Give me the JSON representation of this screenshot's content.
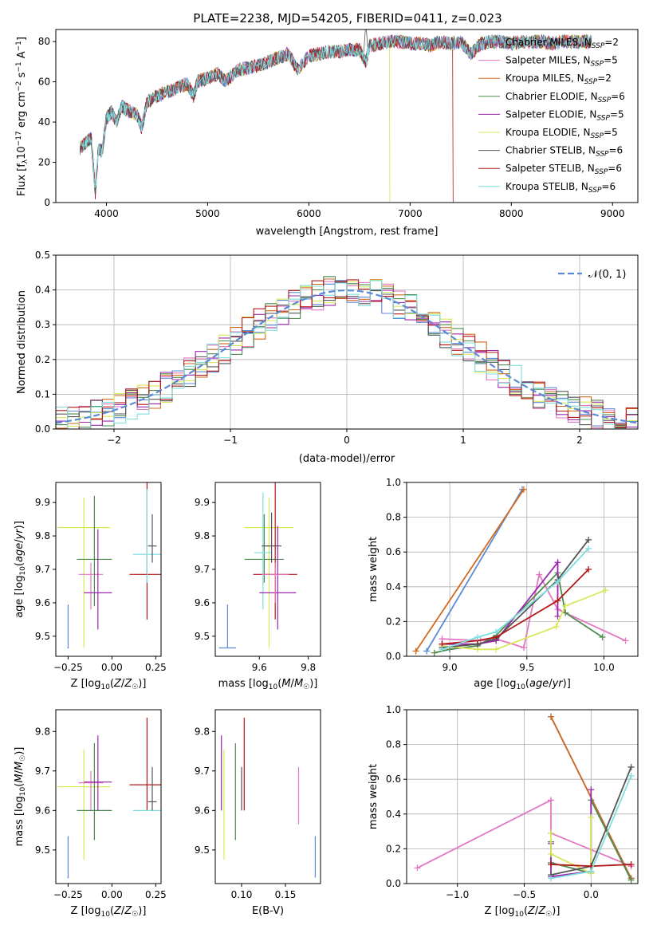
{
  "figure": {
    "title": "PLATE=2238, MJD=54205, FIBERID=0411, z=0.023"
  },
  "colors": {
    "Chabrier MILES": "#5b8bd6",
    "Salpeter MILES": "#e377c2",
    "Kroupa MILES": "#d2691e",
    "Chabrier ELODIE": "#4f8a4f",
    "Salpeter ELODIE": "#9b27ae",
    "Kroupa ELODIE": "#d8e85a",
    "Chabrier STELIB": "#555555",
    "Salpeter STELIB": "#b21818",
    "Kroupa STELIB": "#7fdede",
    "gaussian": "#5b8bd6"
  },
  "chart_data": [
    {
      "id": "spectrum",
      "type": "line",
      "xlabel": "wavelength [Angstrom, rest frame]",
      "ylabel": "Flux [f_λ 10^-17 erg cm^-2 s^-1 A^-1]",
      "xlim": [
        3500,
        9250
      ],
      "ylim": [
        0,
        86
      ],
      "xticks": [
        "4000",
        "5000",
        "6000",
        "7000",
        "8000",
        "9000"
      ],
      "yticks": [
        "0",
        "20",
        "40",
        "60",
        "80"
      ],
      "grid": false,
      "legend": "top-right",
      "legend_entries": [
        {
          "label": "Chabrier MILES, N",
          "n": "2",
          "key": "Chabrier MILES"
        },
        {
          "label": "Salpeter MILES, N",
          "n": "5",
          "key": "Salpeter MILES"
        },
        {
          "label": "Kroupa MILES, N",
          "n": "2",
          "key": "Kroupa MILES"
        },
        {
          "label": "Chabrier ELODIE, N",
          "n": "6",
          "key": "Chabrier ELODIE"
        },
        {
          "label": "Salpeter ELODIE, N",
          "n": "5",
          "key": "Salpeter ELODIE"
        },
        {
          "label": "Kroupa ELODIE, N",
          "n": "5",
          "key": "Kroupa ELODIE"
        },
        {
          "label": "Chabrier STELIB, N",
          "n": "6",
          "key": "Chabrier STELIB"
        },
        {
          "label": "Salpeter STELIB, N",
          "n": "6",
          "key": "Salpeter STELIB"
        },
        {
          "label": "Kroupa STELIB, N",
          "n": "6",
          "key": "Kroupa STELIB"
        }
      ],
      "x": [
        3740,
        3800,
        3850,
        3890,
        3920,
        3960,
        4000,
        4050,
        4100,
        4150,
        4200,
        4300,
        4350,
        4400,
        4500,
        4600,
        4700,
        4800,
        4861,
        4900,
        5000,
        5100,
        5175,
        5300,
        5400,
        5500,
        5600,
        5700,
        5800,
        5890,
        6000,
        6100,
        6200,
        6300,
        6400,
        6500,
        6563,
        6600,
        6700,
        6800,
        6900,
        7000,
        7100,
        7200,
        7300,
        7400,
        7500,
        7600,
        7700,
        7800,
        7900,
        8000,
        8100,
        8200,
        8300,
        8400,
        8500,
        8600,
        8700,
        8800
      ],
      "y": [
        27,
        30,
        32,
        5,
        26,
        26,
        42,
        45,
        40,
        48,
        46,
        44,
        37,
        50,
        53,
        55,
        57,
        59,
        53,
        60,
        62,
        64,
        60,
        66,
        67,
        68,
        70,
        72,
        74,
        66,
        73,
        74,
        75,
        75,
        76,
        76,
        70,
        78,
        79,
        80,
        80,
        79,
        79,
        78,
        80,
        79,
        80,
        74,
        79,
        80,
        80,
        79,
        80,
        80,
        80,
        79,
        80,
        80,
        80,
        80
      ],
      "spikes": [
        {
          "x": 6563,
          "y": 86
        }
      ]
    },
    {
      "id": "residuals",
      "type": "step",
      "xlabel": "(data-model)/error",
      "ylabel": "Normed distribution",
      "xlim": [
        -2.5,
        2.5
      ],
      "ylim": [
        0,
        0.5
      ],
      "xticks": [
        "−2",
        "−1",
        "0",
        "1",
        "2"
      ],
      "yticks": [
        "0.0",
        "0.1",
        "0.2",
        "0.3",
        "0.4",
        "0.5"
      ],
      "grid": true,
      "legend": "top-right",
      "gaussian_label": "𝒩(0, 1)",
      "bin_width": 0.1
    },
    {
      "id": "age_vs_Z",
      "type": "errorbar",
      "xlabel": "Z [log10(Z/Z☉)]",
      "ylabel": "age  [log10(age/yr)]",
      "xlim": [
        -0.32,
        0.28
      ],
      "ylim": [
        9.44,
        9.96
      ],
      "xticks": [
        {
          "v": -0.25,
          "t": "−0.25"
        },
        {
          "v": 0,
          "t": "0.00"
        },
        {
          "v": 0.25,
          "t": "0.25"
        }
      ],
      "yticks": [
        {
          "v": 9.5,
          "t": "9.5"
        },
        {
          "v": 9.6,
          "t": "9.6"
        },
        {
          "v": 9.7,
          "t": "9.7"
        },
        {
          "v": 9.8,
          "t": "9.8"
        },
        {
          "v": 9.9,
          "t": "9.9"
        }
      ],
      "points": [
        {
          "key": "Chabrier MILES",
          "x": -0.25,
          "xerr": 0.004,
          "y": 9.465,
          "ylo": 9.465,
          "yhi": 9.595
        },
        {
          "key": "Kroupa ELODIE",
          "x": -0.16,
          "xerr": 0.15,
          "y": 9.825,
          "ylo": 9.465,
          "yhi": 9.915
        },
        {
          "key": "Salpeter MILES",
          "x": -0.12,
          "xerr": 0.07,
          "y": 9.685,
          "ylo": 9.58,
          "yhi": 9.72
        },
        {
          "key": "Chabrier ELODIE",
          "x": -0.1,
          "xerr": 0.1,
          "y": 9.73,
          "ylo": 9.59,
          "yhi": 9.92
        },
        {
          "key": "Salpeter ELODIE",
          "x": -0.08,
          "xerr": 0.08,
          "y": 9.63,
          "ylo": 9.52,
          "yhi": 9.82
        },
        {
          "key": "Salpeter STELIB",
          "x": 0.2,
          "xerr": 0.1,
          "y": 9.685,
          "ylo": 9.55,
          "yhi": 9.97
        },
        {
          "key": "Kroupa STELIB",
          "x": 0.2,
          "xerr": 0.08,
          "y": 9.745,
          "ylo": 9.66,
          "yhi": 9.94
        },
        {
          "key": "Chabrier STELIB",
          "x": 0.23,
          "xerr": 0.025,
          "y": 9.77,
          "ylo": 9.72,
          "yhi": 9.865
        }
      ]
    },
    {
      "id": "age_vs_mass",
      "type": "errorbar",
      "xlabel": "mass [log10(M/M☉)]",
      "ylabel": "",
      "xlim": [
        9.42,
        9.85
      ],
      "ylim": [
        9.44,
        9.96
      ],
      "xticks": [
        {
          "v": 9.6,
          "t": "9.6"
        },
        {
          "v": 9.8,
          "t": "9.8"
        }
      ],
      "yticks": [
        {
          "v": 9.5,
          "t": "9.5"
        },
        {
          "v": 9.6,
          "t": "9.6"
        },
        {
          "v": 9.7,
          "t": "9.7"
        },
        {
          "v": 9.8,
          "t": "9.8"
        },
        {
          "v": 9.9,
          "t": "9.9"
        }
      ],
      "points": [
        {
          "key": "Chabrier MILES",
          "x": 9.47,
          "xerr": 0.035,
          "y": 9.465,
          "ylo": 9.465,
          "yhi": 9.595
        },
        {
          "key": "Kroupa ELODIE",
          "x": 9.64,
          "xerr": 0.1,
          "y": 9.825,
          "ylo": 9.465,
          "yhi": 9.915
        },
        {
          "key": "Chabrier ELODIE",
          "x": 9.62,
          "xerr": 0.08,
          "y": 9.73,
          "ylo": 9.66,
          "yhi": 9.865
        },
        {
          "key": "Kroupa STELIB",
          "x": 9.615,
          "xerr": 0.035,
          "y": 9.75,
          "ylo": 9.58,
          "yhi": 9.93
        },
        {
          "key": "Chabrier STELIB",
          "x": 9.65,
          "xerr": 0.04,
          "y": 9.77,
          "ylo": 9.72,
          "yhi": 9.87
        },
        {
          "key": "Salpeter ELODIE",
          "x": 9.675,
          "xerr": 0.075,
          "y": 9.63,
          "ylo": 9.52,
          "yhi": 9.83
        },
        {
          "key": "Salpeter STELIB",
          "x": 9.665,
          "xerr": 0.09,
          "y": 9.685,
          "ylo": 9.55,
          "yhi": 9.97
        },
        {
          "key": "Salpeter MILES",
          "x": 9.665,
          "xerr": 0.055,
          "y": 9.685,
          "ylo": 9.6,
          "yhi": 9.72
        }
      ]
    },
    {
      "id": "weight_vs_age",
      "type": "line",
      "xlabel": "age  [log10(age/yr)]",
      "ylabel": "mass weight",
      "xlim": [
        8.72,
        10.22
      ],
      "ylim": [
        0,
        1
      ],
      "xticks": [
        {
          "v": 9.0,
          "t": "9.0"
        },
        {
          "v": 9.5,
          "t": "9.5"
        },
        {
          "v": 10.0,
          "t": "10.0"
        }
      ],
      "yticks": [
        {
          "v": 0,
          "t": "0.0"
        },
        {
          "v": 0.2,
          "t": "0.2"
        },
        {
          "v": 0.4,
          "t": "0.4"
        },
        {
          "v": 0.6,
          "t": "0.6"
        },
        {
          "v": 0.8,
          "t": "0.8"
        },
        {
          "v": 1.0,
          "t": "1.0"
        }
      ],
      "grid": true,
      "series": [
        {
          "key": "Chabrier MILES",
          "x": [
            8.85,
            9.47
          ],
          "y": [
            0.03,
            0.96
          ]
        },
        {
          "key": "Kroupa MILES",
          "x": [
            8.78,
            9.48
          ],
          "y": [
            0.03,
            0.96
          ]
        },
        {
          "key": "Salpeter MILES",
          "x": [
            8.95,
            9.2,
            9.3,
            9.48,
            9.58,
            9.7,
            10.14
          ],
          "y": [
            0.1,
            0.09,
            0.1,
            0.05,
            0.47,
            0.27,
            0.09
          ]
        },
        {
          "key": "Chabrier ELODIE",
          "x": [
            8.9,
            9.0,
            9.18,
            9.3,
            9.7,
            9.75,
            9.99
          ],
          "y": [
            0.02,
            0.04,
            0.06,
            0.12,
            0.48,
            0.25,
            0.11
          ]
        },
        {
          "key": "Salpeter ELODIE",
          "x": [
            8.95,
            9.18,
            9.3,
            9.7,
            9.7
          ],
          "y": [
            0.07,
            0.07,
            0.09,
            0.54,
            0.23
          ]
        },
        {
          "key": "Kroupa ELODIE",
          "x": [
            8.95,
            9.18,
            9.3,
            9.69,
            9.75,
            10.01
          ],
          "y": [
            0.06,
            0.04,
            0.04,
            0.17,
            0.29,
            0.38
          ]
        },
        {
          "key": "Chabrier STELIB",
          "x": [
            8.95,
            9.18,
            9.3,
            9.7,
            9.9
          ],
          "y": [
            0.05,
            0.07,
            0.1,
            0.44,
            0.67
          ]
        },
        {
          "key": "Salpeter STELIB",
          "x": [
            8.95,
            9.18,
            9.3,
            9.7,
            9.9
          ],
          "y": [
            0.07,
            0.09,
            0.11,
            0.32,
            0.5
          ]
        },
        {
          "key": "Kroupa STELIB",
          "x": [
            8.95,
            9.18,
            9.3,
            9.7,
            9.9
          ],
          "y": [
            0.04,
            0.11,
            0.14,
            0.43,
            0.62
          ]
        }
      ]
    },
    {
      "id": "mass_vs_Z",
      "type": "errorbar",
      "xlabel": "Z [log10(Z/Z☉)]",
      "ylabel": "mass [log10(M/M☉)]",
      "xlim": [
        -0.32,
        0.28
      ],
      "ylim": [
        9.415,
        9.855
      ],
      "xticks": [
        {
          "v": -0.25,
          "t": "−0.25"
        },
        {
          "v": 0,
          "t": "0.00"
        },
        {
          "v": 0.25,
          "t": "0.25"
        }
      ],
      "yticks": [
        {
          "v": 9.5,
          "t": "9.5"
        },
        {
          "v": 9.6,
          "t": "9.6"
        },
        {
          "v": 9.7,
          "t": "9.7"
        },
        {
          "v": 9.8,
          "t": "9.8"
        }
      ],
      "points": [
        {
          "key": "Chabrier MILES",
          "x": -0.25,
          "xerr": 0.004,
          "y": 9.43,
          "ylo": 9.43,
          "yhi": 9.535
        },
        {
          "key": "Kroupa ELODIE",
          "x": -0.16,
          "xerr": 0.15,
          "y": 9.66,
          "ylo": 9.475,
          "yhi": 9.755
        },
        {
          "key": "Salpeter MILES",
          "x": -0.12,
          "xerr": 0.07,
          "y": 9.67,
          "ylo": 9.6,
          "yhi": 9.7
        },
        {
          "key": "Chabrier ELODIE",
          "x": -0.1,
          "xerr": 0.1,
          "y": 9.6,
          "ylo": 9.525,
          "yhi": 9.77
        },
        {
          "key": "Salpeter ELODIE",
          "x": -0.08,
          "xerr": 0.08,
          "y": 9.672,
          "ylo": 9.6,
          "yhi": 9.79
        },
        {
          "key": "Salpeter STELIB",
          "x": 0.2,
          "xerr": 0.1,
          "y": 9.665,
          "ylo": 9.6,
          "yhi": 9.835
        },
        {
          "key": "Kroupa STELIB",
          "x": 0.2,
          "xerr": 0.08,
          "y": 9.6,
          "ylo": 9.6,
          "yhi": 9.6
        },
        {
          "key": "Chabrier STELIB",
          "x": 0.23,
          "xerr": 0.025,
          "y": 9.622,
          "ylo": 9.6,
          "yhi": 9.71
        }
      ]
    },
    {
      "id": "mass_vs_EBV",
      "type": "errorbar",
      "xlabel": "E(B-V)",
      "ylabel": "",
      "xlim": [
        0.07,
        0.19
      ],
      "ylim": [
        9.415,
        9.855
      ],
      "xticks": [
        {
          "v": 0.1,
          "t": "0.10"
        },
        {
          "v": 0.15,
          "t": "0.15"
        }
      ],
      "yticks": [
        {
          "v": 9.5,
          "t": "9.5"
        },
        {
          "v": 9.6,
          "t": "9.6"
        },
        {
          "v": 9.7,
          "t": "9.7"
        },
        {
          "v": 9.8,
          "t": "9.8"
        }
      ],
      "points": [
        {
          "key": "Salpeter ELODIE",
          "x": 0.077,
          "xerr": 0,
          "y": 9.66,
          "ylo": 9.6,
          "yhi": 9.79
        },
        {
          "key": "Kroupa ELODIE",
          "x": 0.08,
          "xerr": 0,
          "y": 9.66,
          "ylo": 9.475,
          "yhi": 9.755
        },
        {
          "key": "Chabrier ELODIE",
          "x": 0.093,
          "xerr": 0,
          "y": 9.6,
          "ylo": 9.525,
          "yhi": 9.77
        },
        {
          "key": "Chabrier STELIB",
          "x": 0.1,
          "xerr": 0,
          "y": 9.62,
          "ylo": 9.6,
          "yhi": 9.71
        },
        {
          "key": "Salpeter STELIB",
          "x": 0.103,
          "xerr": 0,
          "y": 9.665,
          "ylo": 9.6,
          "yhi": 9.835
        },
        {
          "key": "Salpeter MILES",
          "x": 0.165,
          "xerr": 0,
          "y": 9.64,
          "ylo": 9.565,
          "yhi": 9.71
        },
        {
          "key": "Chabrier MILES",
          "x": 0.184,
          "xerr": 0,
          "y": 9.43,
          "ylo": 9.43,
          "yhi": 9.535
        }
      ]
    },
    {
      "id": "weight_vs_Z",
      "type": "line",
      "xlabel": "Z [log10(Z/Z☉)]",
      "ylabel": "mass weight",
      "xlim": [
        -1.38,
        0.35
      ],
      "ylim": [
        0,
        1
      ],
      "xticks": [
        {
          "v": -1.0,
          "t": "−1.0"
        },
        {
          "v": -0.5,
          "t": "−0.5"
        },
        {
          "v": 0,
          "t": "0.0"
        }
      ],
      "yticks": [
        {
          "v": 0,
          "t": "0.0"
        },
        {
          "v": 0.2,
          "t": "0.2"
        },
        {
          "v": 0.4,
          "t": "0.4"
        },
        {
          "v": 0.6,
          "t": "0.6"
        },
        {
          "v": 0.8,
          "t": "0.8"
        },
        {
          "v": 1.0,
          "t": "1.0"
        }
      ],
      "grid": true,
      "series": [
        {
          "key": "Salpeter MILES",
          "x": [
            -1.3,
            -0.3,
            -0.3,
            0.3
          ],
          "y": [
            0.09,
            0.48,
            0.29,
            0.1
          ]
        },
        {
          "key": "Chabrier MILES",
          "x": [
            -0.3,
            0.3
          ],
          "y": [
            0.96,
            0.03
          ]
        },
        {
          "key": "Kroupa MILES",
          "x": [
            -0.3,
            0.3
          ],
          "y": [
            0.96,
            0.03
          ]
        },
        {
          "key": "Chabrier ELODIE",
          "x": [
            -0.3,
            -0.3,
            0.0,
            0.0,
            0.3
          ],
          "y": [
            0.24,
            0.12,
            0.06,
            0.48,
            0.02
          ]
        },
        {
          "key": "Salpeter ELODIE",
          "x": [
            -0.3,
            -0.3,
            0.0,
            0.0
          ],
          "y": [
            0.23,
            0.04,
            0.07,
            0.54
          ]
        },
        {
          "key": "Kroupa ELODIE",
          "x": [
            -0.3,
            -0.3,
            0.0,
            0.0
          ],
          "y": [
            0.29,
            0.17,
            0.06,
            0.38
          ]
        },
        {
          "key": "Chabrier STELIB",
          "x": [
            -0.3,
            0.0,
            0.3
          ],
          "y": [
            0.05,
            0.1,
            0.67
          ]
        },
        {
          "key": "Salpeter STELIB",
          "x": [
            -0.3,
            0.0,
            0.3
          ],
          "y": [
            0.11,
            0.1,
            0.11
          ]
        },
        {
          "key": "Kroupa STELIB",
          "x": [
            -0.3,
            0.0,
            0.3
          ],
          "y": [
            0.03,
            0.07,
            0.62
          ]
        }
      ]
    }
  ]
}
